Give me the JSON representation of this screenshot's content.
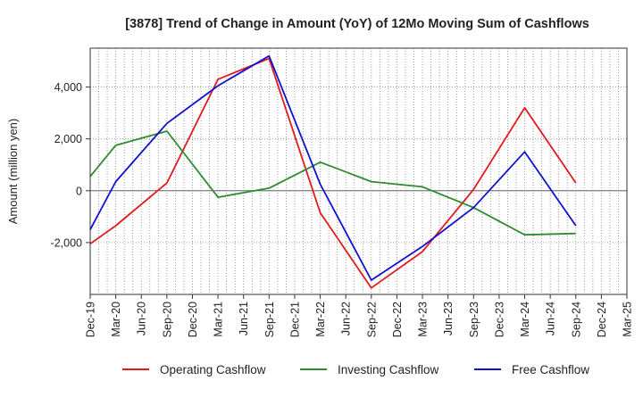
{
  "chart_data": {
    "type": "line",
    "title": "[3878]  Trend of Change in Amount (YoY) of 12Mo Moving Sum of Cashflows",
    "xlabel": "",
    "ylabel": "Amount (million yen)",
    "categories": [
      "Dec-19",
      "Mar-20",
      "Jun-20",
      "Sep-20",
      "Dec-20",
      "Mar-21",
      "Jun-21",
      "Sep-21",
      "Dec-21",
      "Mar-22",
      "Jun-22",
      "Sep-22",
      "Dec-22",
      "Mar-23",
      "Jun-23",
      "Sep-23",
      "Dec-23",
      "Mar-24",
      "Jun-24",
      "Sep-24",
      "Dec-24",
      "Mar-25"
    ],
    "ylim": [
      -4000,
      5500
    ],
    "yticks": [
      -2000,
      0,
      2000,
      4000
    ],
    "ytick_labels": [
      "-2,000",
      "0",
      "2,000",
      "4,000"
    ],
    "grid": true,
    "legend_position": "bottom",
    "series": [
      {
        "name": "Operating Cashflow",
        "color": "#e31a1c",
        "values": [
          -2050,
          -1350,
          null,
          300,
          null,
          4300,
          null,
          5100,
          null,
          -850,
          null,
          -3750,
          null,
          -2350,
          null,
          50,
          null,
          3200,
          null,
          300,
          null,
          null
        ]
      },
      {
        "name": "Investing Cashflow",
        "color": "#2e8b2e",
        "values": [
          550,
          1750,
          null,
          2300,
          null,
          -250,
          null,
          100,
          null,
          1100,
          null,
          350,
          null,
          150,
          null,
          -650,
          null,
          -1700,
          null,
          -1650,
          null,
          null
        ]
      },
      {
        "name": "Free Cashflow",
        "color": "#1010d0",
        "values": [
          -1500,
          350,
          null,
          2600,
          null,
          4050,
          null,
          5200,
          null,
          250,
          null,
          -3450,
          null,
          -2150,
          null,
          -650,
          null,
          1500,
          null,
          -1350,
          null,
          null
        ]
      }
    ]
  }
}
